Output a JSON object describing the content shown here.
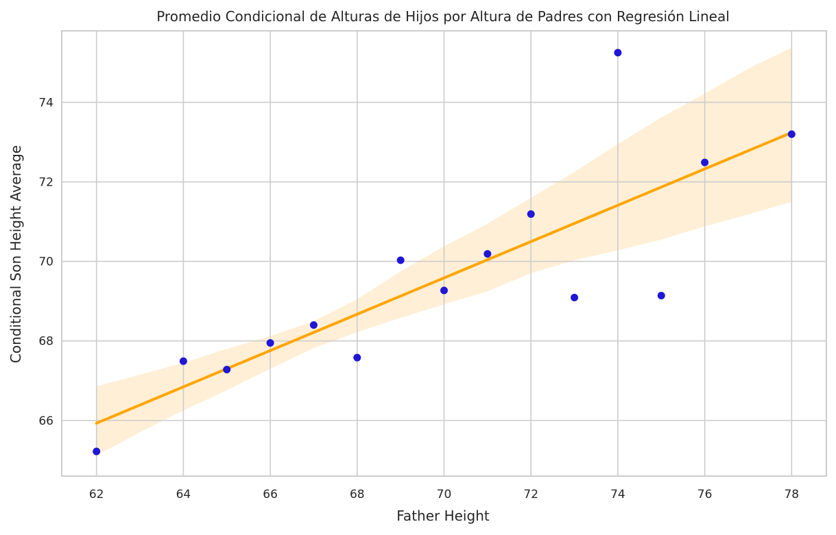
{
  "chart_data": {
    "type": "scatter",
    "title": "Promedio Condicional de Alturas de Hijos por Altura de Padres con Regresión Lineal",
    "xlabel": "Father Height",
    "ylabel": "Conditional Son Height Average",
    "xlim": [
      61.2,
      78.8
    ],
    "ylim": [
      64.6,
      75.8
    ],
    "xticks": [
      "62",
      "64",
      "66",
      "68",
      "70",
      "72",
      "74",
      "76",
      "78"
    ],
    "yticks": [
      "66",
      "68",
      "70",
      "72",
      "74"
    ],
    "grid": true,
    "points": [
      {
        "x": 62,
        "y": 65.22
      },
      {
        "x": 64,
        "y": 67.49
      },
      {
        "x": 65,
        "y": 67.28
      },
      {
        "x": 66,
        "y": 67.95
      },
      {
        "x": 67,
        "y": 68.4
      },
      {
        "x": 68,
        "y": 67.58
      },
      {
        "x": 69,
        "y": 70.03
      },
      {
        "x": 70,
        "y": 69.27
      },
      {
        "x": 71,
        "y": 70.19
      },
      {
        "x": 72,
        "y": 71.19
      },
      {
        "x": 73,
        "y": 69.09
      },
      {
        "x": 74,
        "y": 75.25
      },
      {
        "x": 75,
        "y": 69.14
      },
      {
        "x": 76,
        "y": 72.49
      },
      {
        "x": 78,
        "y": 73.2
      }
    ],
    "regression": {
      "x": [
        62,
        78
      ],
      "y": [
        65.93,
        73.24
      ]
    },
    "confidence_band": {
      "x": [
        62,
        63,
        64,
        65,
        66,
        67,
        68,
        69,
        70,
        71,
        72,
        73,
        74,
        75,
        76,
        77,
        78
      ],
      "upper": [
        66.86,
        67.15,
        67.45,
        67.8,
        68.12,
        68.5,
        69.05,
        69.75,
        70.38,
        70.95,
        71.6,
        72.25,
        72.95,
        73.62,
        74.22,
        74.85,
        75.38
      ],
      "lower": [
        65.12,
        65.7,
        66.25,
        66.76,
        67.3,
        67.82,
        68.22,
        68.58,
        68.92,
        69.25,
        69.7,
        70.03,
        70.28,
        70.55,
        70.88,
        71.18,
        71.5
      ]
    },
    "colors": {
      "points": "#1f16d6",
      "line": "#ffa500",
      "band": "#ffefd6",
      "grid": "#cccccc",
      "spine": "#cccccc"
    }
  }
}
